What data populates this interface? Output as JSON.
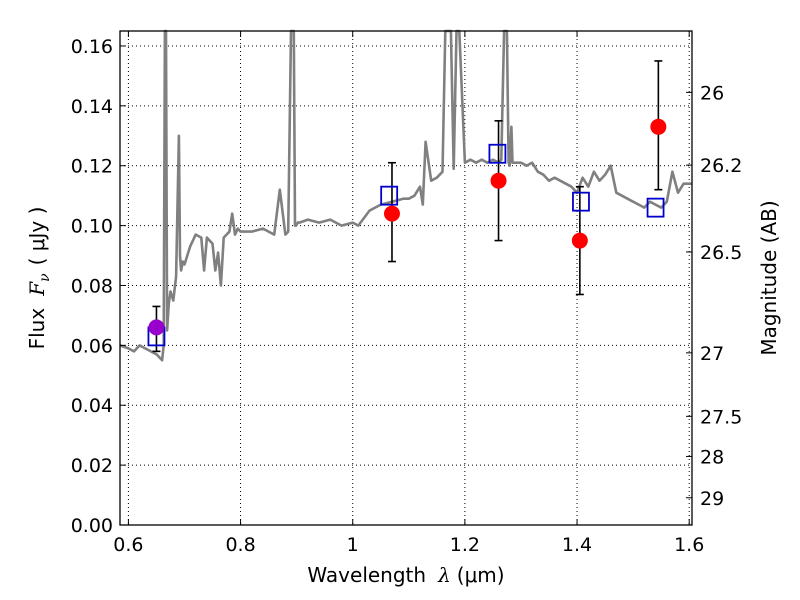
{
  "chart_data": {
    "type": "scatter",
    "xlabel_text": "Wavelength",
    "xlabel_symbol": "λ",
    "xlabel_unit": "(μm)",
    "ylabel_text": "Flux",
    "ylabel_symbol": "F",
    "ylabel_sub": "ν",
    "ylabel_unit": "( μJy )",
    "y2label": "Magnitude (AB)",
    "xlim": [
      0.585,
      1.605
    ],
    "ylim": [
      0.0,
      0.165
    ],
    "grid": true,
    "x_ticks": [
      0.6,
      0.8,
      1.0,
      1.2,
      1.4,
      1.6
    ],
    "x_tick_labels": [
      "0.6",
      "0.8",
      "1",
      "1.2",
      "1.4",
      "1.6"
    ],
    "y_ticks": [
      0.0,
      0.02,
      0.04,
      0.06,
      0.08,
      0.1,
      0.12,
      0.14,
      0.16
    ],
    "y_tick_labels": [
      "0.00",
      "0.02",
      "0.04",
      "0.06",
      "0.08",
      "0.10",
      "0.12",
      "0.14",
      "0.16"
    ],
    "magnitude_ticks": [
      {
        "label": "26",
        "flux": 0.1445
      },
      {
        "label": "26.2",
        "flux": 0.1202
      },
      {
        "label": "26.5",
        "flux": 0.0912
      },
      {
        "label": "27",
        "flux": 0.0575
      },
      {
        "label": "27.5",
        "flux": 0.0363
      },
      {
        "label": "28",
        "flux": 0.0229
      },
      {
        "label": "29",
        "flux": 0.0091
      }
    ],
    "series": [
      {
        "type": "line",
        "color": "#808080",
        "x": [
          0.585,
          0.6,
          0.61,
          0.62,
          0.63,
          0.64,
          0.65,
          0.655,
          0.66,
          0.663,
          0.665,
          0.667,
          0.669,
          0.672,
          0.675,
          0.68,
          0.685,
          0.69,
          0.692,
          0.694,
          0.697,
          0.7,
          0.705,
          0.71,
          0.72,
          0.73,
          0.735,
          0.74,
          0.75,
          0.755,
          0.76,
          0.765,
          0.77,
          0.78,
          0.785,
          0.79,
          0.795,
          0.8,
          0.82,
          0.84,
          0.86,
          0.87,
          0.88,
          0.885,
          0.89,
          0.895,
          0.897,
          0.899,
          0.902,
          0.905,
          0.92,
          0.94,
          0.96,
          0.98,
          1.0,
          1.01,
          1.03,
          1.05,
          1.07,
          1.09,
          1.1,
          1.11,
          1.12,
          1.125,
          1.13,
          1.14,
          1.15,
          1.16,
          1.165,
          1.17,
          1.175,
          1.18,
          1.185,
          1.19,
          1.2,
          1.21,
          1.22,
          1.23,
          1.24,
          1.25,
          1.26,
          1.265,
          1.27,
          1.273,
          1.275,
          1.278,
          1.28,
          1.283,
          1.285,
          1.29,
          1.3,
          1.31,
          1.32,
          1.33,
          1.34,
          1.35,
          1.36,
          1.37,
          1.38,
          1.39,
          1.4,
          1.41,
          1.42,
          1.43,
          1.44,
          1.45,
          1.46,
          1.47,
          1.48,
          1.49,
          1.5,
          1.51,
          1.52,
          1.53,
          1.54,
          1.55,
          1.56,
          1.57,
          1.58,
          1.59,
          1.6,
          1.605
        ],
        "y": [
          0.06,
          0.059,
          0.058,
          0.06,
          0.059,
          0.058,
          0.057,
          0.056,
          0.055,
          0.06,
          0.165,
          0.165,
          0.065,
          0.074,
          0.078,
          0.075,
          0.083,
          0.13,
          0.09,
          0.085,
          0.088,
          0.087,
          0.09,
          0.093,
          0.097,
          0.096,
          0.085,
          0.096,
          0.094,
          0.085,
          0.091,
          0.08,
          0.096,
          0.098,
          0.104,
          0.097,
          0.099,
          0.098,
          0.098,
          0.099,
          0.097,
          0.112,
          0.097,
          0.098,
          0.165,
          0.165,
          0.1,
          0.1,
          0.101,
          0.101,
          0.102,
          0.101,
          0.102,
          0.1,
          0.101,
          0.1,
          0.105,
          0.107,
          0.108,
          0.109,
          0.109,
          0.11,
          0.113,
          0.107,
          0.128,
          0.115,
          0.116,
          0.118,
          0.165,
          0.165,
          0.165,
          0.119,
          0.165,
          0.165,
          0.121,
          0.122,
          0.121,
          0.122,
          0.121,
          0.122,
          0.121,
          0.122,
          0.165,
          0.165,
          0.165,
          0.121,
          0.12,
          0.133,
          0.121,
          0.121,
          0.121,
          0.12,
          0.121,
          0.118,
          0.117,
          0.115,
          0.116,
          0.115,
          0.114,
          0.113,
          0.111,
          0.116,
          0.113,
          0.118,
          0.115,
          0.117,
          0.12,
          0.111,
          0.11,
          0.109,
          0.108,
          0.107,
          0.106,
          0.108,
          0.107,
          0.106,
          0.108,
          0.118,
          0.111,
          0.114,
          0.114,
          0.114
        ]
      },
      {
        "type": "errorbar",
        "color": "#ff0000",
        "marker": "circle",
        "x": [
          0.65,
          1.07,
          1.26,
          1.405,
          1.545
        ],
        "y": [
          0.066,
          0.104,
          0.115,
          0.095,
          0.133
        ],
        "yerr_low": [
          0.058,
          0.088,
          0.095,
          0.077,
          0.112
        ],
        "yerr_high": [
          0.073,
          0.121,
          0.135,
          0.113,
          0.155
        ]
      },
      {
        "type": "scatter",
        "color": "#0000cc",
        "marker": "open-square",
        "x": [
          0.65,
          1.065,
          1.258,
          1.407,
          1.54
        ],
        "y": [
          0.063,
          0.11,
          0.124,
          0.108,
          0.106
        ]
      }
    ],
    "overlap_marker_color": "#9900cc"
  }
}
